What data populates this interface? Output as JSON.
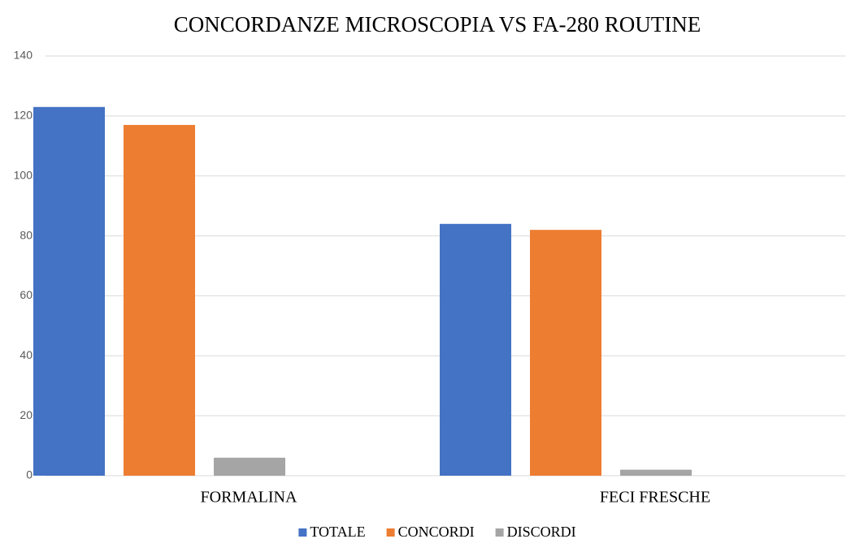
{
  "chart_data": {
    "type": "bar",
    "title": "CONCORDANZE MICROSCOPIA VS FA-280 ROUTINE",
    "categories": [
      "FORMALINA",
      "FECI FRESCHE"
    ],
    "series": [
      {
        "name": "TOTALE",
        "color": "#4472c4",
        "values": [
          123,
          84
        ]
      },
      {
        "name": "CONCORDI",
        "color": "#ed7d31",
        "values": [
          117,
          82
        ]
      },
      {
        "name": "DISCORDI",
        "color": "#a5a5a5",
        "values": [
          6,
          2
        ]
      }
    ],
    "ylim": [
      0,
      140
    ],
    "yticks": [
      0,
      20,
      40,
      60,
      80,
      100,
      120,
      140
    ],
    "grid": true,
    "legend": "bottom"
  }
}
